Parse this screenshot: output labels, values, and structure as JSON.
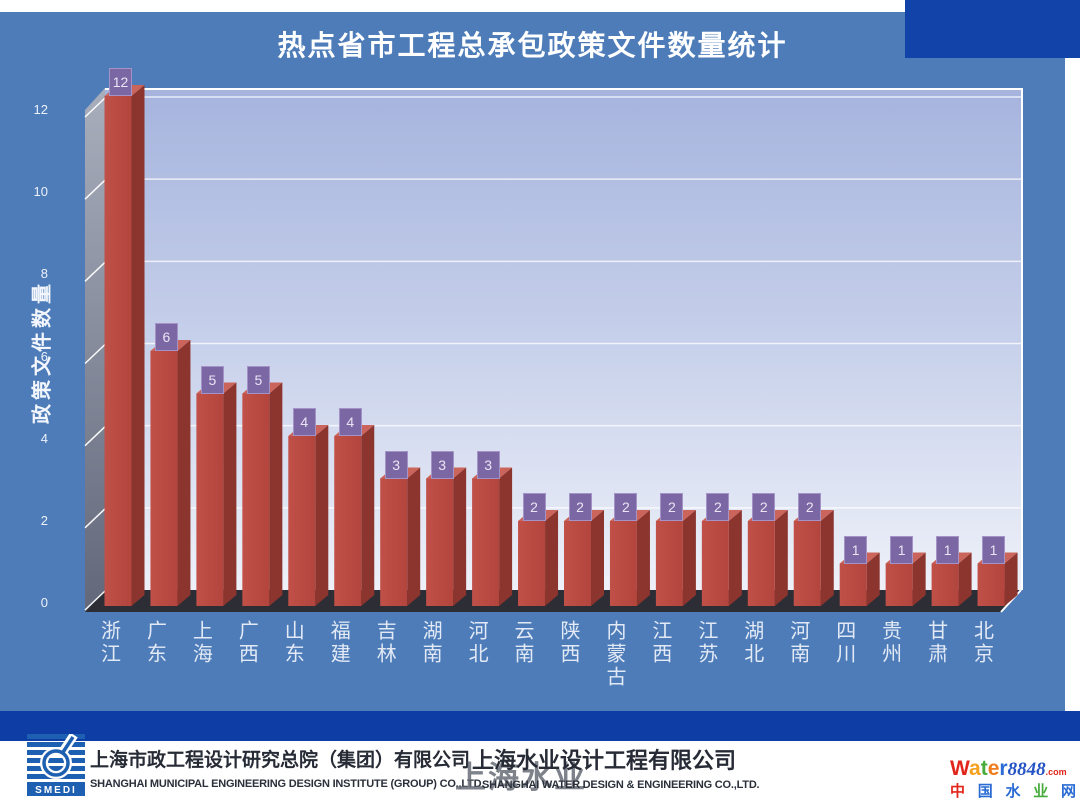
{
  "slide": {
    "title": "热点省市工程总承包政策文件数量统计"
  },
  "chart_data": {
    "type": "bar",
    "title": "热点省市工程总承包政策文件数量统计",
    "xlabel": "",
    "ylabel": "政策文件数量",
    "categories": [
      "浙江",
      "广东",
      "上海",
      "广西",
      "山东",
      "福建",
      "吉林",
      "湖南",
      "河北",
      "云南",
      "陕西",
      "内蒙古",
      "江西",
      "江苏",
      "湖北",
      "河南",
      "四川",
      "贵州",
      "甘肃",
      "北京"
    ],
    "values": [
      12,
      6,
      5,
      5,
      4,
      4,
      3,
      3,
      3,
      2,
      2,
      2,
      2,
      2,
      2,
      2,
      1,
      1,
      1,
      1
    ],
    "yticks": [
      0,
      2,
      4,
      6,
      8,
      10,
      12
    ],
    "ylim": [
      0,
      12
    ],
    "grid": true,
    "legend_position": "none",
    "style": {
      "bar_front": "#c05048",
      "bar_front_dark": "#b2453d",
      "bar_side": "#8c342e",
      "bar_top": "#cb655b",
      "value_box": "#7b67a3",
      "value_box_border": "#a393c6",
      "plot_wall_top": "#a6b4de",
      "plot_wall_bottom": "#eef1f9",
      "side_wall_top": "#a8aebc",
      "side_wall_bottom": "#62687a",
      "floor": "#2c2d35",
      "slide_blue": "#4d7cb9",
      "accent_navy": "#1243a8"
    }
  },
  "footer": {
    "company1_cn": "上海市政工程设计研究总院（集团）有限公司",
    "company1_en": "SHANGHAI MUNICIPAL ENGINEERING DESIGN INSTITUTE (GROUP) CO.,LTD.",
    "company2_cn": "上海水业设计工程有限公司",
    "company2_en": "SHANGHAI WATER DESIGN & ENGINEERING CO.,LTD.",
    "watermark": "上海水业",
    "smedi_label": "SMEDI",
    "water8848": {
      "letters": [
        {
          "t": "W",
          "c": "#e2251b"
        },
        {
          "t": "a",
          "c": "#f6a11d"
        },
        {
          "t": "t",
          "c": "#47ac3c"
        },
        {
          "t": "e",
          "c": "#ef7c1d"
        },
        {
          "t": "r",
          "c": "#2a6bd4"
        }
      ],
      "number": "8848",
      "dotcom": ".com",
      "cn_chars": [
        {
          "t": "中",
          "c": "#e2251b"
        },
        {
          "t": "国",
          "c": "#2a6bd4"
        },
        {
          "t": "水",
          "c": "#2a6bd4"
        },
        {
          "t": "业",
          "c": "#47ac3c"
        },
        {
          "t": "网",
          "c": "#2a6bd4"
        }
      ]
    }
  }
}
